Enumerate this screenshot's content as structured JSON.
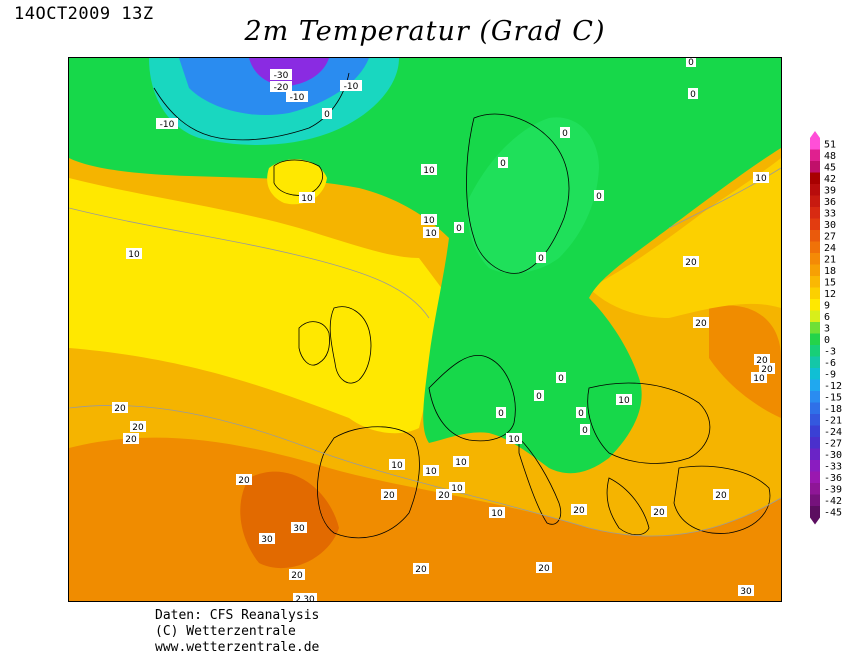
{
  "header": {
    "timestamp": "14OCT2009 13Z",
    "title": "2m Temperatur (Grad C)"
  },
  "credits": {
    "line1": "Daten: CFS Reanalysis",
    "line2": "(C) Wetterzentrale",
    "line3": "www.wetterzentrale.de"
  },
  "colors": {
    "ocean_warm": "#f5b400",
    "orange": "#f08c00",
    "deep_orange": "#e26a00",
    "yellow_orange": "#f2c200",
    "yellow": "#ffe800",
    "light_yellow": "#fff200",
    "green": "#17d84a",
    "bright_green": "#1fe05a",
    "cyan": "#19d7c0",
    "blue": "#2a8cf0",
    "purple": "#8a2be2"
  },
  "legend": {
    "unit": "Grad C",
    "levels": [
      "51",
      "48",
      "45",
      "42",
      "39",
      "36",
      "33",
      "30",
      "27",
      "24",
      "21",
      "18",
      "15",
      "12",
      "9",
      "6",
      "3",
      "0",
      "-3",
      "-6",
      "-9",
      "-12",
      "-15",
      "-18",
      "-21",
      "-24",
      "-27",
      "-30",
      "-33",
      "-36",
      "-39",
      "-42",
      "-45"
    ],
    "colors": [
      "#ff4fd8",
      "#e0208f",
      "#c0106a",
      "#a80000",
      "#b80c0c",
      "#c81a10",
      "#d82a12",
      "#e23c10",
      "#ea5a0c",
      "#f07208",
      "#f48a06",
      "#f7a004",
      "#fab803",
      "#fcd000",
      "#ffe800",
      "#d8ef1a",
      "#6ee036",
      "#24d34a",
      "#18cf78",
      "#14c7a8",
      "#10bfd4",
      "#20a8ef",
      "#2a8cf0",
      "#2f70e8",
      "#3458de",
      "#3a40d4",
      "#4a30cc",
      "#6a24c6",
      "#8a1cc0",
      "#9a18b0",
      "#8e1696",
      "#76127c",
      "#5c0e60"
    ]
  },
  "contour_labels": [
    {
      "text": "-30"
    },
    {
      "text": "-20"
    },
    {
      "text": "-10"
    },
    {
      "text": "-10"
    },
    {
      "text": "-10"
    },
    {
      "text": "0"
    },
    {
      "text": "0"
    },
    {
      "text": "0"
    },
    {
      "text": "0"
    },
    {
      "text": "0"
    },
    {
      "text": "0"
    },
    {
      "text": "0"
    },
    {
      "text": "0"
    },
    {
      "text": "0"
    },
    {
      "text": "0"
    },
    {
      "text": "0"
    },
    {
      "text": "0"
    },
    {
      "text": "0"
    },
    {
      "text": "10"
    },
    {
      "text": "10"
    },
    {
      "text": "10"
    },
    {
      "text": "10"
    },
    {
      "text": "10"
    },
    {
      "text": "10"
    },
    {
      "text": "10"
    },
    {
      "text": "10"
    },
    {
      "text": "10"
    },
    {
      "text": "10"
    },
    {
      "text": "10"
    },
    {
      "text": "10"
    },
    {
      "text": "10"
    },
    {
      "text": "10"
    },
    {
      "text": "20"
    },
    {
      "text": "20"
    },
    {
      "text": "20"
    },
    {
      "text": "20"
    },
    {
      "text": "20"
    },
    {
      "text": "20"
    },
    {
      "text": "20"
    },
    {
      "text": "20"
    },
    {
      "text": "20"
    },
    {
      "text": "20"
    },
    {
      "text": "20"
    },
    {
      "text": "20"
    },
    {
      "text": "20"
    },
    {
      "text": "20"
    },
    {
      "text": "20"
    },
    {
      "text": "20"
    },
    {
      "text": "20"
    },
    {
      "text": "30"
    },
    {
      "text": "30"
    },
    {
      "text": "30"
    },
    {
      "text": "30"
    }
  ]
}
